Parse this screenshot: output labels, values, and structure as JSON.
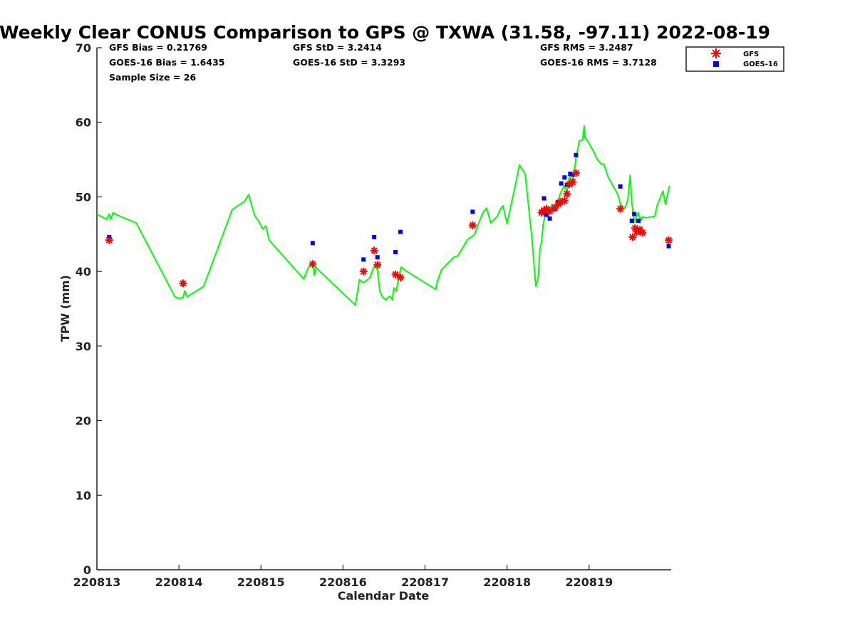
{
  "chart_data": {
    "type": "scatter",
    "title": "Weekly Clear CONUS Comparison to GPS @ TXWA (31.58, -97.11) 2022-08-19",
    "xlabel": "Calendar Date",
    "ylabel": "TPW (mm)",
    "xlim": [
      "220813",
      "220820"
    ],
    "ylim": [
      0,
      70
    ],
    "yticks": [
      0,
      10,
      20,
      30,
      40,
      50,
      60,
      70
    ],
    "xticks": [
      "220813",
      "220814",
      "220815",
      "220816",
      "220817",
      "220818",
      "220819"
    ],
    "grid": false,
    "legend_position": "top-right",
    "stats": {
      "gfs_bias": "GFS Bias = 0.21769",
      "goes_bias": "GOES-16 Bias = 1.6435",
      "sample_size": "Sample Size = 26",
      "gfs_std": "GFS StD = 3.2414",
      "goes_std": "GOES-16 StD = 3.3293",
      "gfs_rms": "GFS RMS = 3.2487",
      "goes_rms": "GOES-16 RMS = 3.7128"
    },
    "series": [
      {
        "name": "",
        "kind": "line",
        "color": "#00ff00",
        "x": [
          13.0,
          13.05,
          13.1,
          13.12,
          13.15,
          13.17,
          13.2,
          13.24,
          13.48,
          13.95,
          14.0,
          14.05,
          14.07,
          14.1,
          14.3,
          14.65,
          14.8,
          14.85,
          14.92,
          14.94,
          14.97,
          15.02,
          15.06,
          15.1,
          15.52,
          15.58,
          15.63,
          15.65,
          15.67,
          15.7,
          16.15,
          16.2,
          16.25,
          16.3,
          16.33,
          16.36,
          16.39,
          16.42,
          16.45,
          16.48,
          16.52,
          16.57,
          16.6,
          16.62,
          16.65,
          16.68,
          16.71,
          16.73,
          16.75,
          17.13,
          17.15,
          17.2,
          17.25,
          17.35,
          17.4,
          17.52,
          17.6,
          17.7,
          17.75,
          17.8,
          17.88,
          17.92,
          17.95,
          18.0,
          18.12,
          18.15,
          18.22,
          18.3,
          18.35,
          18.38,
          18.4,
          18.42,
          18.44,
          18.47,
          18.5,
          18.55,
          18.6,
          18.65,
          18.7,
          18.73,
          18.76,
          18.8,
          18.84,
          18.88,
          18.92,
          18.94,
          18.95,
          18.97,
          19.05,
          19.1,
          19.15,
          19.18,
          19.23,
          19.35,
          19.38,
          19.43,
          19.47,
          19.5,
          19.52,
          19.55,
          19.6,
          19.63,
          19.65,
          19.7,
          19.8,
          19.83,
          19.9,
          19.93,
          19.95,
          19.98
        ],
        "y": [
          47.7,
          47.4,
          47.1,
          47.0,
          47.7,
          47.0,
          47.9,
          47.6,
          46.5,
          36.6,
          36.4,
          36.5,
          37.4,
          36.6,
          38.0,
          48.3,
          49.4,
          50.3,
          47.6,
          47.2,
          46.8,
          45.7,
          46.1,
          44.2,
          39.0,
          40.6,
          41.1,
          39.5,
          40.6,
          40.2,
          35.5,
          38.9,
          38.5,
          38.9,
          39.2,
          40.2,
          40.8,
          40.2,
          37.3,
          36.6,
          36.2,
          36.7,
          36.2,
          37.8,
          37.4,
          39.3,
          40.6,
          40.4,
          40.2,
          37.6,
          38.7,
          40.2,
          40.8,
          41.9,
          42.1,
          44.3,
          44.9,
          47.8,
          48.5,
          46.5,
          47.4,
          48.4,
          48.8,
          46.4,
          52.6,
          54.3,
          53.1,
          44.7,
          38.0,
          39.2,
          43.0,
          44.0,
          46.3,
          47.9,
          48.0,
          49.0,
          48.5,
          50.5,
          51.5,
          50.5,
          52.9,
          51.7,
          55.2,
          57.5,
          57.6,
          59.5,
          57.9,
          57.7,
          56.2,
          55.0,
          54.4,
          54.4,
          52.7,
          50.3,
          49.1,
          48.4,
          49.5,
          52.9,
          49.3,
          46.6,
          47.9,
          46.8,
          47.3,
          47.2,
          47.4,
          48.9,
          50.8,
          49.0,
          50.0,
          51.5
        ]
      },
      {
        "name": "GFS",
        "kind": "marker",
        "marker": "asterisk",
        "color": "#ff0000",
        "x": [
          13.15,
          14.05,
          15.63,
          16.25,
          16.38,
          16.42,
          16.64,
          16.7,
          17.58,
          18.42,
          18.45,
          18.48,
          18.52,
          18.58,
          18.62,
          18.65,
          18.7,
          18.73,
          18.76,
          18.8,
          18.84,
          19.38,
          19.53,
          19.56,
          19.58,
          19.62,
          19.65,
          19.97
        ],
        "y": [
          44.2,
          38.4,
          41.0,
          40.0,
          42.8,
          40.9,
          39.6,
          39.2,
          46.2,
          47.9,
          48.2,
          48.4,
          48.1,
          48.5,
          49.0,
          49.3,
          49.5,
          50.4,
          51.7,
          52.0,
          53.2,
          48.4,
          44.6,
          45.8,
          45.3,
          45.6,
          45.2,
          44.2
        ]
      },
      {
        "name": "GOES-16",
        "kind": "marker",
        "marker": "square",
        "color": "#0000ff",
        "x": [
          13.15,
          14.05,
          15.63,
          16.25,
          16.38,
          16.42,
          16.64,
          16.7,
          17.58,
          18.42,
          18.45,
          18.48,
          18.52,
          18.58,
          18.62,
          18.66,
          18.7,
          18.73,
          18.77,
          18.8,
          18.84,
          19.38,
          19.52,
          19.55,
          19.6,
          19.97
        ],
        "y": [
          44.6,
          38.4,
          43.8,
          41.6,
          44.6,
          41.9,
          42.6,
          45.3,
          48.0,
          48.0,
          49.8,
          47.6,
          47.1,
          48.4,
          49.3,
          51.8,
          52.6,
          51.6,
          53.1,
          53.0,
          55.6,
          51.4,
          46.8,
          47.7,
          46.8,
          43.4
        ]
      }
    ]
  }
}
